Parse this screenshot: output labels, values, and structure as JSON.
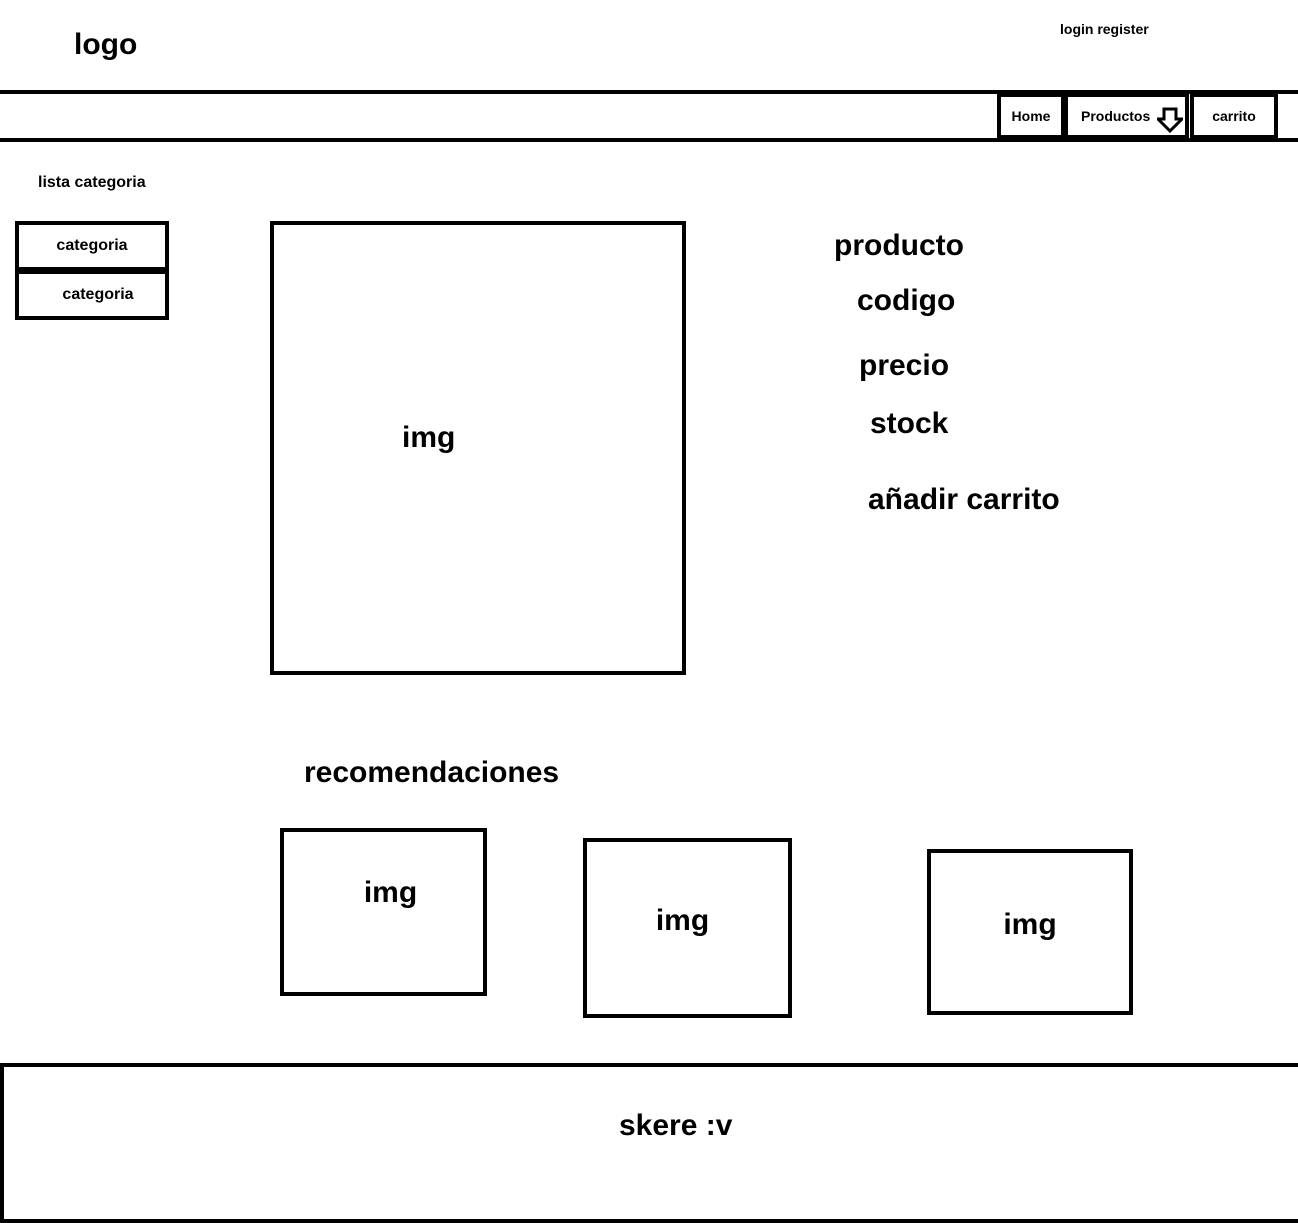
{
  "header": {
    "logo": "logo",
    "auth_links": "login register"
  },
  "nav": {
    "items": [
      {
        "label": "Home"
      },
      {
        "label": "Productos",
        "icon": "down-arrow-icon"
      },
      {
        "label": "carrito"
      }
    ]
  },
  "sidebar": {
    "title": "lista categoria",
    "items": [
      {
        "label": "categoria"
      },
      {
        "label": "categoria"
      }
    ]
  },
  "product": {
    "image_label": "img",
    "name": "producto",
    "code": "codigo",
    "price": "precio",
    "stock": "stock",
    "add_to_cart": "añadir carrito"
  },
  "recommendations": {
    "title": "recomendaciones",
    "items": [
      {
        "image_label": "img"
      },
      {
        "image_label": "img"
      },
      {
        "image_label": "img"
      }
    ]
  },
  "footer": {
    "text": "skere :v"
  }
}
